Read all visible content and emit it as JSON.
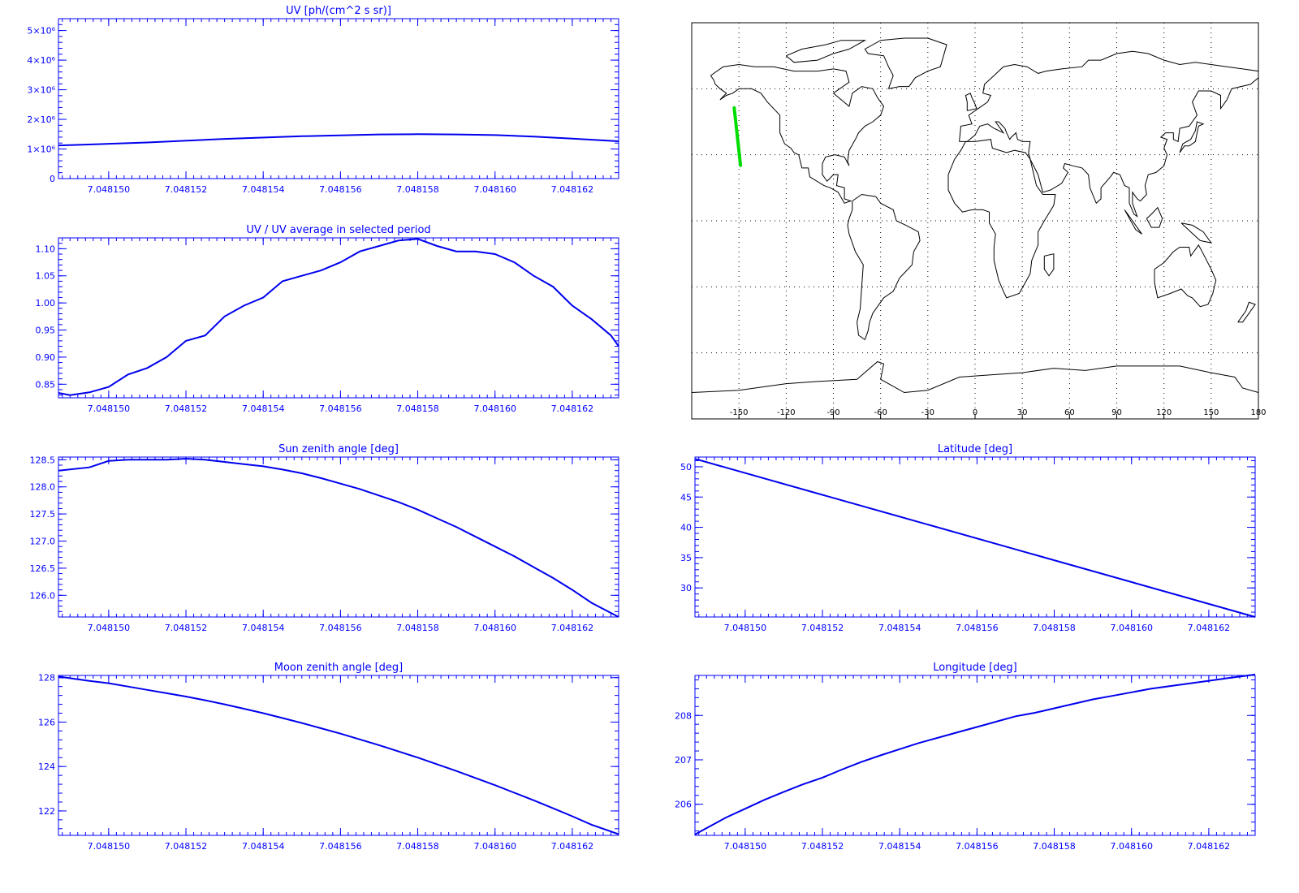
{
  "colors": {
    "axis": "#0000ff",
    "line": "#0000ee",
    "track": "#00dd00",
    "coast": "#000000",
    "grid": "#000000"
  },
  "x_ticks": [
    "7.048150",
    "7.048152",
    "7.048154",
    "7.048156",
    "7.048158",
    "7.048160",
    "7.048162"
  ],
  "chart_data": [
    {
      "type": "line",
      "title": "UV [ph/(cm^2 s sr)]",
      "xlim": [
        7.0481487,
        7.0481632
      ],
      "ylim": [
        0,
        5400000
      ],
      "yticks": [
        0,
        1000000,
        2000000,
        3000000,
        4000000,
        5000000
      ],
      "ytick_labels": [
        "0",
        "1×10⁶",
        "2×10⁶",
        "3×10⁶",
        "4×10⁶",
        "5×10⁶"
      ],
      "x": [
        7.0481487,
        7.048149,
        7.048151,
        7.048153,
        7.048155,
        7.048157,
        7.048158,
        7.048159,
        7.04816,
        7.048161,
        7.048162,
        7.0481632
      ],
      "y": [
        1120000,
        1130000,
        1220000,
        1340000,
        1430000,
        1490000,
        1500000,
        1490000,
        1470000,
        1420000,
        1350000,
        1260000
      ]
    },
    {
      "type": "line",
      "title": "UV / UV average in selected period",
      "xlim": [
        7.0481487,
        7.0481632
      ],
      "ylim": [
        0.825,
        1.12
      ],
      "yticks": [
        0.85,
        0.9,
        0.95,
        1.0,
        1.05,
        1.1
      ],
      "ytick_labels": [
        "0.85",
        "0.90",
        "0.95",
        "1.00",
        "1.05",
        "1.10"
      ],
      "x": [
        7.0481487,
        7.048149,
        7.0481495,
        7.04815,
        7.0481505,
        7.048151,
        7.0481515,
        7.048152,
        7.0481525,
        7.048153,
        7.0481535,
        7.048154,
        7.0481545,
        7.048155,
        7.0481555,
        7.048156,
        7.0481565,
        7.048157,
        7.0481575,
        7.048158,
        7.0481585,
        7.048159,
        7.0481595,
        7.04816,
        7.0481605,
        7.048161,
        7.0481615,
        7.048162,
        7.0481625,
        7.048163,
        7.0481632
      ],
      "y": [
        0.834,
        0.83,
        0.835,
        0.845,
        0.868,
        0.88,
        0.9,
        0.93,
        0.94,
        0.975,
        0.995,
        1.01,
        1.04,
        1.05,
        1.06,
        1.075,
        1.095,
        1.105,
        1.115,
        1.118,
        1.105,
        1.095,
        1.095,
        1.09,
        1.075,
        1.05,
        1.03,
        0.995,
        0.97,
        0.94,
        0.92
      ]
    },
    {
      "type": "line",
      "title": "Sun zenith angle [deg]",
      "xlim": [
        7.0481487,
        7.0481632
      ],
      "ylim": [
        125.6,
        128.55
      ],
      "yticks": [
        126.0,
        126.5,
        127.0,
        127.5,
        128.0,
        128.5
      ],
      "ytick_labels": [
        "126.0",
        "126.5",
        "127.0",
        "127.5",
        "128.0",
        "128.5"
      ],
      "x": [
        7.0481487,
        7.0481495,
        7.04815,
        7.0481505,
        7.048151,
        7.0481515,
        7.048152,
        7.0481525,
        7.048153,
        7.0481535,
        7.048154,
        7.0481545,
        7.048155,
        7.0481555,
        7.048156,
        7.0481565,
        7.048157,
        7.0481575,
        7.048158,
        7.0481585,
        7.048159,
        7.0481595,
        7.04816,
        7.0481605,
        7.048161,
        7.0481615,
        7.048162,
        7.0481625,
        7.0481632
      ],
      "y": [
        128.3,
        128.36,
        128.48,
        128.5,
        128.5,
        128.5,
        128.52,
        128.5,
        128.46,
        128.42,
        128.38,
        128.32,
        128.25,
        128.16,
        128.06,
        127.96,
        127.84,
        127.72,
        127.58,
        127.42,
        127.26,
        127.08,
        126.9,
        126.72,
        126.52,
        126.32,
        126.1,
        125.86,
        125.6
      ]
    },
    {
      "type": "line",
      "title": "Latitude [deg]",
      "xlim": [
        7.0481487,
        7.0481632
      ],
      "ylim": [
        25.2,
        51.6
      ],
      "yticks": [
        30,
        35,
        40,
        45,
        50
      ],
      "ytick_labels": [
        "30",
        "35",
        "40",
        "45",
        "50"
      ],
      "x": [
        7.0481487,
        7.0481632
      ],
      "y": [
        51.3,
        25.2
      ]
    },
    {
      "type": "line",
      "title": "Moon zenith angle [deg]",
      "xlim": [
        7.0481487,
        7.0481632
      ],
      "ylim": [
        120.9,
        128.1
      ],
      "yticks": [
        122,
        124,
        126,
        128
      ],
      "ytick_labels": [
        "122",
        "124",
        "126",
        "128"
      ],
      "x": [
        7.0481487,
        7.0481495,
        7.04815,
        7.0481505,
        7.048151,
        7.0481515,
        7.048152,
        7.0481525,
        7.048153,
        7.0481535,
        7.048154,
        7.0481545,
        7.048155,
        7.0481555,
        7.048156,
        7.0481565,
        7.048157,
        7.0481575,
        7.048158,
        7.0481585,
        7.048159,
        7.0481595,
        7.04816,
        7.0481605,
        7.048161,
        7.0481615,
        7.048162,
        7.0481625,
        7.0481632
      ],
      "y": [
        128.05,
        127.85,
        127.75,
        127.6,
        127.45,
        127.3,
        127.15,
        126.98,
        126.8,
        126.6,
        126.4,
        126.18,
        125.96,
        125.72,
        125.48,
        125.22,
        124.96,
        124.68,
        124.4,
        124.1,
        123.8,
        123.48,
        123.16,
        122.82,
        122.48,
        122.12,
        121.76,
        121.38,
        120.95
      ]
    },
    {
      "type": "line",
      "title": "Longitude [deg]",
      "xlim": [
        7.0481487,
        7.0481632
      ],
      "ylim": [
        205.3,
        208.9
      ],
      "yticks": [
        206,
        207,
        208
      ],
      "ytick_labels": [
        "206",
        "207",
        "208"
      ],
      "x": [
        7.0481487,
        7.0481495,
        7.04815,
        7.0481505,
        7.048151,
        7.0481515,
        7.048152,
        7.0481525,
        7.048153,
        7.0481535,
        7.048154,
        7.0481545,
        7.048155,
        7.0481555,
        7.048156,
        7.0481565,
        7.048157,
        7.0481575,
        7.048158,
        7.0481585,
        7.048159,
        7.0481595,
        7.04816,
        7.0481605,
        7.048161,
        7.0481615,
        7.048162,
        7.0481625,
        7.0481632
      ],
      "y": [
        205.32,
        205.7,
        205.9,
        206.1,
        206.28,
        206.45,
        206.6,
        206.78,
        206.95,
        207.1,
        207.24,
        207.38,
        207.5,
        207.62,
        207.74,
        207.86,
        207.98,
        208.06,
        208.16,
        208.26,
        208.36,
        208.44,
        208.52,
        208.6,
        208.66,
        208.72,
        208.78,
        208.84,
        208.92
      ]
    }
  ],
  "map": {
    "lon_ticks": [
      "-150",
      "-120",
      "-90",
      "-60",
      "-30",
      "0",
      "30",
      "60",
      "90",
      "120",
      "150",
      "180"
    ],
    "track": {
      "lon": [
        -153,
        -149
      ],
      "lat": [
        51.3,
        25.2
      ]
    }
  }
}
